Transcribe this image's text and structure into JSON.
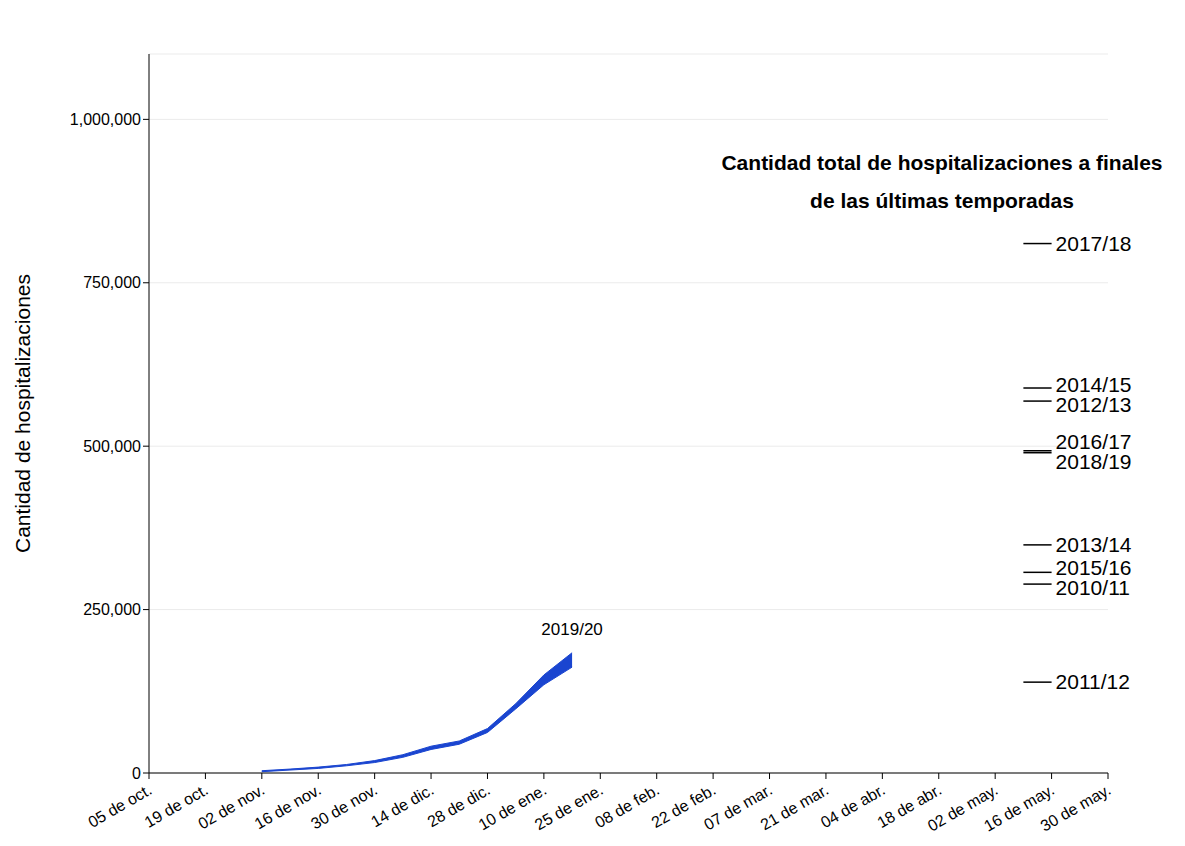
{
  "chart_data": {
    "type": "area",
    "annotation": "Cantidad total de hospitalizaciones a finales de las últimas temporadas",
    "y_label": "Cantidad de hospitalizaciones",
    "categories": [
      "05 de oct.",
      null,
      "19 de oct.",
      null,
      "02 de nov.",
      null,
      "16 de nov.",
      null,
      "30 de nov.",
      null,
      "14 de dic.",
      null,
      "28 de dic.",
      null,
      "10 de ene.",
      null,
      "25 de ene.",
      null,
      "08 de feb.",
      null,
      "22 de feb.",
      null,
      "07 de mar.",
      null,
      "21 de mar.",
      null,
      "04 de abr.",
      null,
      "18 de abr.",
      null,
      "02 de may.",
      null,
      "16 de may.",
      null,
      "30 de may."
    ],
    "series": [
      {
        "name": "2019/20",
        "color": "#1a45d0",
        "lower": [
          null,
          null,
          null,
          null,
          2000,
          4500,
          7000,
          11000,
          16000,
          24000,
          36000,
          44000,
          62000,
          98000,
          135000,
          162000,
          null,
          null,
          null,
          null,
          null,
          null,
          null,
          null,
          null,
          null,
          null,
          null,
          null,
          null,
          null,
          null,
          null,
          null,
          null
        ],
        "upper": [
          null,
          null,
          null,
          null,
          3500,
          6000,
          9000,
          13000,
          19000,
          28000,
          41000,
          49000,
          68000,
          106000,
          150000,
          184000,
          null,
          null,
          null,
          null,
          null,
          null,
          null,
          null,
          null,
          null,
          null,
          null,
          null,
          null,
          null,
          null,
          null,
          null,
          null
        ]
      }
    ],
    "reference_lines": [
      {
        "name": "2017/18",
        "value": 810000,
        "color": "#000000"
      },
      {
        "name": "2014/15",
        "value": 589000,
        "color": "#000000"
      },
      {
        "name": "2012/13",
        "value": 569000,
        "color": "#000000"
      },
      {
        "name": "2016/17",
        "value": 493000,
        "color": "#000000"
      },
      {
        "name": "2018/19",
        "value": 490000,
        "color": "#000000"
      },
      {
        "name": "2013/14",
        "value": 349000,
        "color": "#000000"
      },
      {
        "name": "2015/16",
        "value": 307000,
        "color": "#000000"
      },
      {
        "name": "2010/11",
        "value": 289000,
        "color": "#000000"
      },
      {
        "name": "2011/12",
        "value": 139000,
        "color": "#000000"
      }
    ],
    "ylim": [
      0,
      1100000
    ],
    "yticks": [
      {
        "value": 0,
        "label": "0"
      },
      {
        "value": 250000,
        "label": "250,000"
      },
      {
        "value": 500000,
        "label": "500,000"
      },
      {
        "value": 750000,
        "label": "750,000"
      },
      {
        "value": 1000000,
        "label": "1,000,000"
      }
    ],
    "grid": true
  }
}
